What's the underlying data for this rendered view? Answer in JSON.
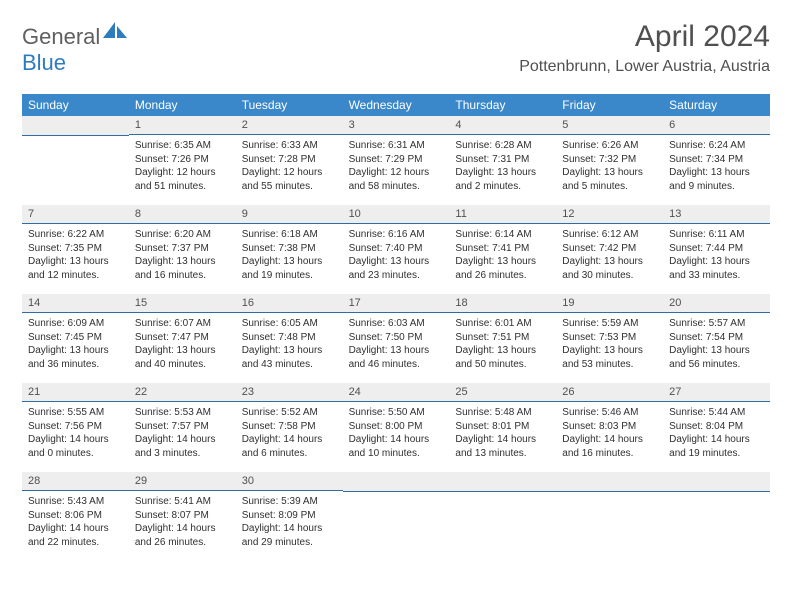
{
  "logo": {
    "text_general": "General",
    "text_blue": "Blue",
    "icon_color": "#2e7cc0"
  },
  "header": {
    "month_title": "April 2024",
    "location": "Pottenbrunn, Lower Austria, Austria"
  },
  "colors": {
    "header_bg": "#3a87c9",
    "day_number_bg": "#eeeeee",
    "cell_border": "#2e6da4",
    "text_primary": "#303030",
    "text_secondary": "#505050",
    "logo_gray": "#606060",
    "logo_blue": "#2e7cc0"
  },
  "day_names": [
    "Sunday",
    "Monday",
    "Tuesday",
    "Wednesday",
    "Thursday",
    "Friday",
    "Saturday"
  ],
  "weeks": [
    [
      null,
      {
        "num": "1",
        "sunrise": "6:35 AM",
        "sunset": "7:26 PM",
        "daylight": "12 hours and 51 minutes."
      },
      {
        "num": "2",
        "sunrise": "6:33 AM",
        "sunset": "7:28 PM",
        "daylight": "12 hours and 55 minutes."
      },
      {
        "num": "3",
        "sunrise": "6:31 AM",
        "sunset": "7:29 PM",
        "daylight": "12 hours and 58 minutes."
      },
      {
        "num": "4",
        "sunrise": "6:28 AM",
        "sunset": "7:31 PM",
        "daylight": "13 hours and 2 minutes."
      },
      {
        "num": "5",
        "sunrise": "6:26 AM",
        "sunset": "7:32 PM",
        "daylight": "13 hours and 5 minutes."
      },
      {
        "num": "6",
        "sunrise": "6:24 AM",
        "sunset": "7:34 PM",
        "daylight": "13 hours and 9 minutes."
      }
    ],
    [
      {
        "num": "7",
        "sunrise": "6:22 AM",
        "sunset": "7:35 PM",
        "daylight": "13 hours and 12 minutes."
      },
      {
        "num": "8",
        "sunrise": "6:20 AM",
        "sunset": "7:37 PM",
        "daylight": "13 hours and 16 minutes."
      },
      {
        "num": "9",
        "sunrise": "6:18 AM",
        "sunset": "7:38 PM",
        "daylight": "13 hours and 19 minutes."
      },
      {
        "num": "10",
        "sunrise": "6:16 AM",
        "sunset": "7:40 PM",
        "daylight": "13 hours and 23 minutes."
      },
      {
        "num": "11",
        "sunrise": "6:14 AM",
        "sunset": "7:41 PM",
        "daylight": "13 hours and 26 minutes."
      },
      {
        "num": "12",
        "sunrise": "6:12 AM",
        "sunset": "7:42 PM",
        "daylight": "13 hours and 30 minutes."
      },
      {
        "num": "13",
        "sunrise": "6:11 AM",
        "sunset": "7:44 PM",
        "daylight": "13 hours and 33 minutes."
      }
    ],
    [
      {
        "num": "14",
        "sunrise": "6:09 AM",
        "sunset": "7:45 PM",
        "daylight": "13 hours and 36 minutes."
      },
      {
        "num": "15",
        "sunrise": "6:07 AM",
        "sunset": "7:47 PM",
        "daylight": "13 hours and 40 minutes."
      },
      {
        "num": "16",
        "sunrise": "6:05 AM",
        "sunset": "7:48 PM",
        "daylight": "13 hours and 43 minutes."
      },
      {
        "num": "17",
        "sunrise": "6:03 AM",
        "sunset": "7:50 PM",
        "daylight": "13 hours and 46 minutes."
      },
      {
        "num": "18",
        "sunrise": "6:01 AM",
        "sunset": "7:51 PM",
        "daylight": "13 hours and 50 minutes."
      },
      {
        "num": "19",
        "sunrise": "5:59 AM",
        "sunset": "7:53 PM",
        "daylight": "13 hours and 53 minutes."
      },
      {
        "num": "20",
        "sunrise": "5:57 AM",
        "sunset": "7:54 PM",
        "daylight": "13 hours and 56 minutes."
      }
    ],
    [
      {
        "num": "21",
        "sunrise": "5:55 AM",
        "sunset": "7:56 PM",
        "daylight": "14 hours and 0 minutes."
      },
      {
        "num": "22",
        "sunrise": "5:53 AM",
        "sunset": "7:57 PM",
        "daylight": "14 hours and 3 minutes."
      },
      {
        "num": "23",
        "sunrise": "5:52 AM",
        "sunset": "7:58 PM",
        "daylight": "14 hours and 6 minutes."
      },
      {
        "num": "24",
        "sunrise": "5:50 AM",
        "sunset": "8:00 PM",
        "daylight": "14 hours and 10 minutes."
      },
      {
        "num": "25",
        "sunrise": "5:48 AM",
        "sunset": "8:01 PM",
        "daylight": "14 hours and 13 minutes."
      },
      {
        "num": "26",
        "sunrise": "5:46 AM",
        "sunset": "8:03 PM",
        "daylight": "14 hours and 16 minutes."
      },
      {
        "num": "27",
        "sunrise": "5:44 AM",
        "sunset": "8:04 PM",
        "daylight": "14 hours and 19 minutes."
      }
    ],
    [
      {
        "num": "28",
        "sunrise": "5:43 AM",
        "sunset": "8:06 PM",
        "daylight": "14 hours and 22 minutes."
      },
      {
        "num": "29",
        "sunrise": "5:41 AM",
        "sunset": "8:07 PM",
        "daylight": "14 hours and 26 minutes."
      },
      {
        "num": "30",
        "sunrise": "5:39 AM",
        "sunset": "8:09 PM",
        "daylight": "14 hours and 29 minutes."
      },
      null,
      null,
      null,
      null
    ]
  ],
  "labels": {
    "sunrise_prefix": "Sunrise: ",
    "sunset_prefix": "Sunset: ",
    "daylight_prefix": "Daylight: "
  }
}
